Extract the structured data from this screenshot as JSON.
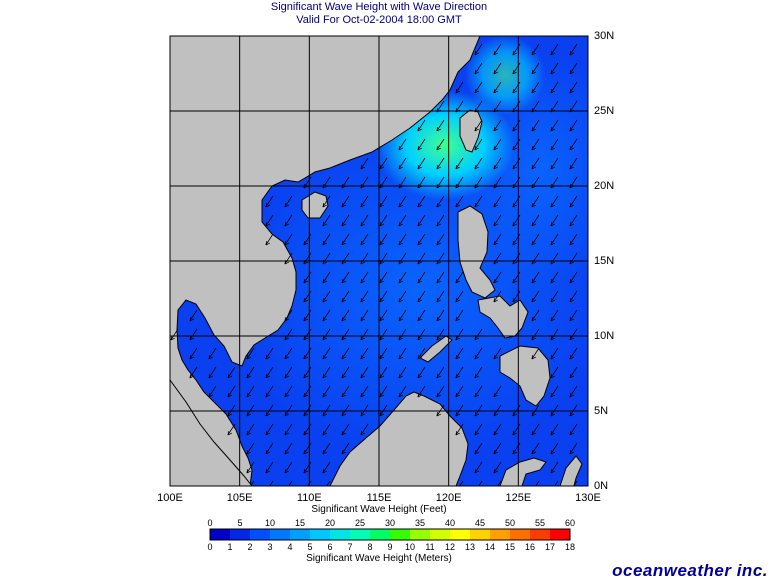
{
  "title": "Significant Wave Height with Wave Direction",
  "subtitle": "Valid For Oct-02-2004 18:00 GMT",
  "lon_labels": [
    "100E",
    "105E",
    "110E",
    "115E",
    "120E",
    "125E",
    "130E"
  ],
  "lat_labels": [
    "30N",
    "25N",
    "20N",
    "15N",
    "10N",
    "5N",
    "0N"
  ],
  "colorbar": {
    "feet_title": "Significant Wave Height (Feet)",
    "meter_title": "Significant Wave Height (Meters)",
    "feet_ticks": [
      "0",
      "5",
      "10",
      "15",
      "20",
      "25",
      "30",
      "35",
      "40",
      "45",
      "50",
      "55",
      "60"
    ],
    "meter_ticks": [
      "0",
      "1",
      "2",
      "3",
      "4",
      "5",
      "6",
      "7",
      "8",
      "9",
      "10",
      "11",
      "12",
      "13",
      "14",
      "15",
      "16",
      "17",
      "18"
    ],
    "colors": [
      "#0000c8",
      "#0028e6",
      "#0050ff",
      "#0078ff",
      "#00a0ff",
      "#00c8ff",
      "#00e6e6",
      "#00ffb4",
      "#00ff64",
      "#32ff00",
      "#96ff00",
      "#d2ff00",
      "#ffff00",
      "#ffd200",
      "#ffa000",
      "#ff6e00",
      "#ff3c00",
      "#ff0000"
    ]
  },
  "map_colors": {
    "land": "#c0c0c0",
    "coast": "#000000",
    "grid": "#000000",
    "wave_low": "#0a2ee0",
    "wave_mid": "#0a64ff",
    "wave_high": "#00d0ff",
    "wave_peak": "#40ff90",
    "arrow": "#000000"
  },
  "brand": "oceanweather inc."
}
